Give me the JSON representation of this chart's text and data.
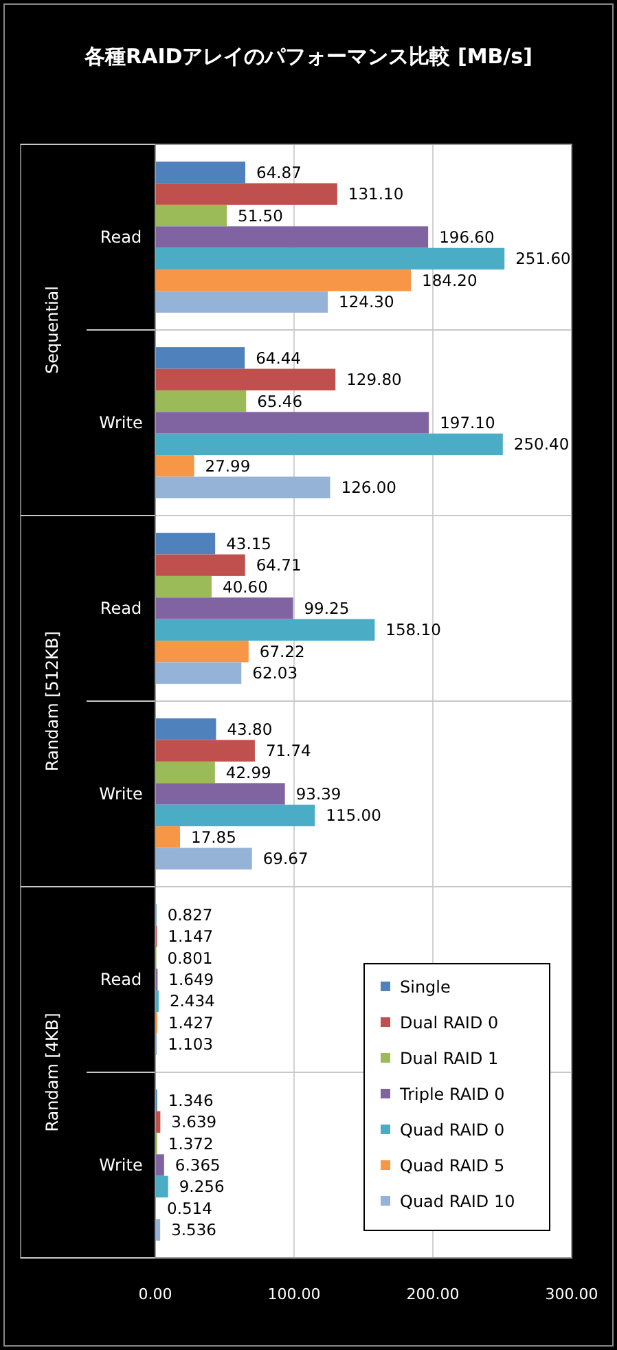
{
  "chart_data": {
    "type": "bar",
    "orientation": "horizontal",
    "title": "各種RAIDアレイのパフォーマンス比較 [MB/s]",
    "categories": [
      "Read",
      "Write",
      "Read",
      "Write",
      "Read",
      "Write"
    ],
    "annotations": [
      "Sequential",
      "Randam [512KB]",
      "Randam [4KB]"
    ],
    "series": [
      {
        "name": "Single",
        "color": "#4f81bd",
        "values": [
          64.87,
          64.44,
          43.15,
          43.8,
          0.827,
          1.346
        ],
        "value_labels": [
          "64.87",
          "64.44",
          "43.15",
          "43.80",
          "0.827",
          "1.346"
        ]
      },
      {
        "name": "Dual RAID 0",
        "color": "#c0504d",
        "values": [
          131.1,
          129.8,
          64.71,
          71.74,
          1.147,
          3.639
        ],
        "value_labels": [
          "131.10",
          "129.80",
          "64.71",
          "71.74",
          "1.147",
          "3.639"
        ]
      },
      {
        "name": "Dual RAID 1",
        "color": "#9bbb59",
        "values": [
          51.5,
          65.46,
          40.6,
          42.99,
          0.801,
          1.372
        ],
        "value_labels": [
          "51.50",
          "65.46",
          "40.60",
          "42.99",
          "0.801",
          "1.372"
        ]
      },
      {
        "name": "Triple RAID 0",
        "color": "#8064a2",
        "values": [
          196.6,
          197.1,
          99.25,
          93.39,
          1.649,
          6.365
        ],
        "value_labels": [
          "196.60",
          "197.10",
          "99.25",
          "93.39",
          "1.649",
          "6.365"
        ]
      },
      {
        "name": "Quad RAID 0",
        "color": "#4bacc6",
        "values": [
          251.6,
          250.4,
          158.1,
          115.0,
          2.434,
          9.256
        ],
        "value_labels": [
          "251.60",
          "250.40",
          "158.10",
          "115.00",
          "2.434",
          "9.256"
        ]
      },
      {
        "name": "Quad RAID 5",
        "color": "#f79646",
        "values": [
          184.2,
          27.99,
          67.22,
          17.85,
          1.427,
          0.514
        ],
        "value_labels": [
          "184.20",
          "27.99",
          "67.22",
          "17.85",
          "1.427",
          "0.514"
        ]
      },
      {
        "name": "Quad RAID 10",
        "color": "#95b3d7",
        "values": [
          124.3,
          126.0,
          62.03,
          69.67,
          1.103,
          3.536
        ],
        "value_labels": [
          "124.30",
          "126.00",
          "62.03",
          "69.67",
          "1.103",
          "3.536"
        ]
      }
    ],
    "xlim": [
      0,
      300
    ],
    "xticks": [
      {
        "value": 0,
        "label": "0.00"
      },
      {
        "value": 100,
        "label": "100.00"
      },
      {
        "value": 200,
        "label": "200.00"
      },
      {
        "value": 300,
        "label": "300.00"
      }
    ],
    "grid": "x",
    "legend": "bottom right"
  }
}
